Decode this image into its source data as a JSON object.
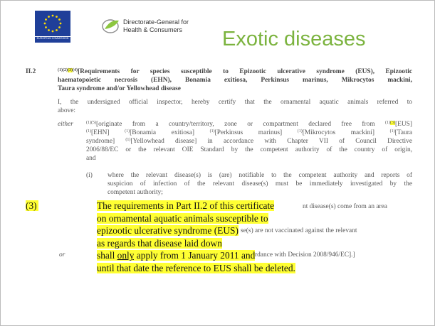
{
  "header": {
    "logo_caption": "EUROPEAN COMMISSION",
    "dg_line1": "Directorate-General for",
    "dg_line2": "Health & Consumers",
    "title": "Exotic diseases"
  },
  "section": {
    "number": "II.2",
    "heading": [
      [
        {
          "t": "(1)(2)",
          "sup": true
        },
        {
          "t": "(3)",
          "sup": true,
          "hl": true
        },
        {
          "t": "(4)",
          "sup": true
        },
        {
          "t": "[Requirements for species susceptible to Epizootic ulcerative syndrome (EUS), Epizootic"
        }
      ],
      [
        {
          "t": "haematopoietic necrosis (EHN), Bonamia exitiosa, Perkinsus marinus, Mikrocytos mackini,"
        }
      ],
      [
        {
          "t": "Taura syndrome and/or Yellowhead disease"
        }
      ]
    ],
    "intro": [
      [
        {
          "t": "I, the undersigned official inspector, hereby certify that the ornamental aquatic animals referred to"
        }
      ],
      [
        {
          "t": "above:"
        }
      ]
    ],
    "either_label": "either",
    "either_text": [
      [
        {
          "t": "(1)(5)",
          "sup": true
        },
        {
          "t": "[originate from a country/territory, zone or compartment declared free from "
        },
        {
          "t": "(1)",
          "sup": true
        },
        {
          "t": "(3)",
          "sup": true,
          "hl": true
        },
        {
          "t": "[EUS]"
        }
      ],
      [
        {
          "t": "(1)",
          "sup": true
        },
        {
          "t": "[EHN] "
        },
        {
          "t": "(1)",
          "sup": true
        },
        {
          "t": "[Bonamia exitiosa] "
        },
        {
          "t": "(1)",
          "sup": true
        },
        {
          "t": "[Perkinsus marinus] "
        },
        {
          "t": "(1)",
          "sup": true
        },
        {
          "t": "[Mikrocytos mackini] "
        },
        {
          "t": "(1)",
          "sup": true
        },
        {
          "t": "[Taura"
        }
      ],
      [
        {
          "t": "syndrome] "
        },
        {
          "t": "(1)",
          "sup": true
        },
        {
          "t": "[Yellowhead disease] in accordance with Chapter VII of Council Directive"
        }
      ],
      [
        {
          "t": "2006/88/EC or the relevant OIE Standard by the competent authority of the country of origin,"
        }
      ],
      [
        {
          "t": "and"
        }
      ]
    ],
    "item_label": "(i)",
    "item_text": [
      [
        {
          "t": "where the relevant disease(s) is (are) notifiable to the competent authority and reports of"
        }
      ],
      [
        {
          "t": "suspicion of infection of the relevant disease(s) must be immediately investigated by the"
        }
      ],
      [
        {
          "t": "competent authority;"
        }
      ]
    ],
    "obscured_fragments": [
      "nt disease(s) come from an area",
      "se(s) are not vaccinated against the relevant",
      "or",
      "rdance with Decision 2008/946/EC].]"
    ]
  },
  "note": {
    "number": "(3)",
    "lines": [
      [
        {
          "t": "The requirements in Part II.2 of this certificate"
        }
      ],
      [
        {
          "t": "on ornamental aquatic animals susceptible to"
        }
      ],
      [
        {
          "t": "epizootic ulcerative syndrome (EUS)"
        }
      ],
      [
        {
          "t": "as regards that disease laid down"
        }
      ],
      [
        {
          "t": "shall "
        },
        {
          "t": "only",
          "u": true
        },
        {
          "t": " apply from 1 January 2011 and"
        }
      ],
      [
        {
          "t": "until that date the reference to EUS shall be deleted."
        }
      ]
    ]
  }
}
